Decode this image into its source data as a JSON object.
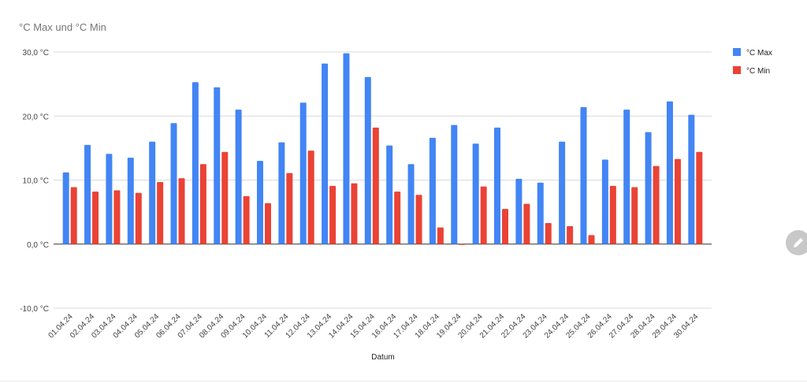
{
  "chart_data": {
    "type": "bar",
    "title": "°C Max und °C Min",
    "xlabel": "Datum",
    "ylabel": "",
    "ylim": [
      -10,
      30
    ],
    "yticks": [
      30,
      20,
      10,
      0,
      -10
    ],
    "ytick_labels": [
      "30,0 °C",
      "20,0 °C",
      "10,0 °C",
      "0,0 °C",
      "-10,0 °C"
    ],
    "grid": true,
    "legend_position": "right",
    "categories": [
      "01.04.24",
      "02.04.24",
      "03.04.24",
      "04.04.24",
      "05.04.24",
      "06.04.24",
      "07.04.24",
      "08.04.24",
      "09.04.24",
      "10.04.24",
      "11.04.24",
      "12.04.24",
      "13.04.24",
      "14.04.24",
      "15.04.24",
      "16.04.24",
      "17.04.24",
      "18.04.24",
      "19.04.24",
      "20.04.24",
      "21.04.24",
      "22.04.24",
      "23.04.24",
      "24.04.24",
      "25.04.24",
      "26.04.24",
      "27.04.24",
      "28.04.24",
      "29.04.24",
      "30.04.24"
    ],
    "series": [
      {
        "name": "°C Max",
        "color": "#4285f4",
        "values": [
          11.2,
          15.5,
          14.1,
          13.5,
          16.0,
          18.9,
          25.3,
          24.5,
          21.0,
          13.0,
          15.9,
          22.1,
          28.2,
          29.8,
          26.1,
          15.4,
          12.5,
          16.6,
          18.6,
          15.7,
          18.2,
          10.2,
          9.6,
          16.0,
          21.4,
          13.2,
          21.0,
          17.5,
          22.3,
          20.2
        ]
      },
      {
        "name": "°C Min",
        "color": "#ea4335",
        "values": [
          8.9,
          8.2,
          8.4,
          8.0,
          9.7,
          10.3,
          12.5,
          14.4,
          7.5,
          6.4,
          11.1,
          14.6,
          9.1,
          9.5,
          18.2,
          8.2,
          7.7,
          2.6,
          -0.1,
          9.0,
          5.5,
          6.3,
          3.3,
          2.8,
          1.4,
          9.1,
          8.9,
          12.2,
          13.3,
          14.4
        ]
      }
    ]
  },
  "ui": {
    "edit_icon": "pencil-icon"
  }
}
